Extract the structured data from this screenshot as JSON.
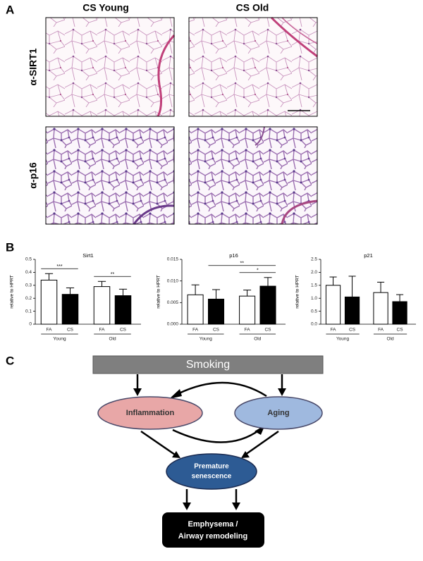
{
  "panel_a": {
    "label": "A",
    "columns": [
      "CS Young",
      "CS Old"
    ],
    "rows": [
      "α-SIRT1",
      "α-p16"
    ]
  },
  "panel_b": {
    "label": "B"
  },
  "chart_data": [
    {
      "type": "bar",
      "title": "Sirt1",
      "ylabel": "relative to HPRT",
      "categories": [
        "FA",
        "CS",
        "FA",
        "CS"
      ],
      "groups": [
        "Young",
        "Old"
      ],
      "values": [
        0.34,
        0.23,
        0.29,
        0.22
      ],
      "errors": [
        0.05,
        0.05,
        0.04,
        0.05
      ],
      "colors": [
        "#ffffff",
        "#000000",
        "#ffffff",
        "#000000"
      ],
      "ylim": [
        0,
        0.5
      ],
      "yticks": [
        0,
        0.1,
        0.2,
        0.3,
        0.4,
        0.5
      ],
      "annotations": [
        {
          "label": "***",
          "from": 0,
          "to": 1
        },
        {
          "label": "**",
          "from": 2,
          "to": 3
        }
      ]
    },
    {
      "type": "bar",
      "title": "p16",
      "ylabel": "relative to HPRT",
      "categories": [
        "FA",
        "CS",
        "FA",
        "CS"
      ],
      "groups": [
        "Young",
        "Old"
      ],
      "values": [
        0.0068,
        0.0058,
        0.0065,
        0.0088
      ],
      "errors": [
        0.0023,
        0.0022,
        0.0014,
        0.002
      ],
      "colors": [
        "#ffffff",
        "#000000",
        "#ffffff",
        "#000000"
      ],
      "ylim": [
        0,
        0.015
      ],
      "yticks": [
        {
          "value": 0,
          "label": "0.000"
        },
        {
          "value": 0.005,
          "label": "0.005"
        },
        {
          "value": 0.01,
          "label": "0.010"
        },
        {
          "value": 0.015,
          "label": "0.015"
        }
      ],
      "annotations": [
        {
          "label": "*",
          "from": 2,
          "to": 3
        },
        {
          "label": "**",
          "from": 1,
          "to": 3
        }
      ]
    },
    {
      "type": "bar",
      "title": "p21",
      "ylabel": "relative to HPRT",
      "categories": [
        "FA",
        "CS",
        "FA",
        "CS"
      ],
      "groups": [
        "Young",
        "Old"
      ],
      "values": [
        1.5,
        1.05,
        1.22,
        0.87
      ],
      "errors": [
        0.32,
        0.8,
        0.4,
        0.27
      ],
      "colors": [
        "#ffffff",
        "#000000",
        "#ffffff",
        "#000000"
      ],
      "ylim": [
        0,
        2.5
      ],
      "yticks": [
        {
          "value": 0,
          "label": "0.0"
        },
        {
          "value": 0.5,
          "label": "0.5"
        },
        {
          "value": 1,
          "label": "1.0"
        },
        {
          "value": 1.5,
          "label": "1.5"
        },
        {
          "value": 2,
          "label": "2.0"
        },
        {
          "value": 2.5,
          "label": "2.5"
        }
      ],
      "annotations": []
    }
  ],
  "panel_c": {
    "label": "C",
    "smoking": "Smoking",
    "inflammation": "Inflammation",
    "aging": "Aging",
    "senescence": [
      "Premature",
      "senescence"
    ],
    "outcome": [
      "Emphysema /",
      "Airway remodeling"
    ]
  }
}
